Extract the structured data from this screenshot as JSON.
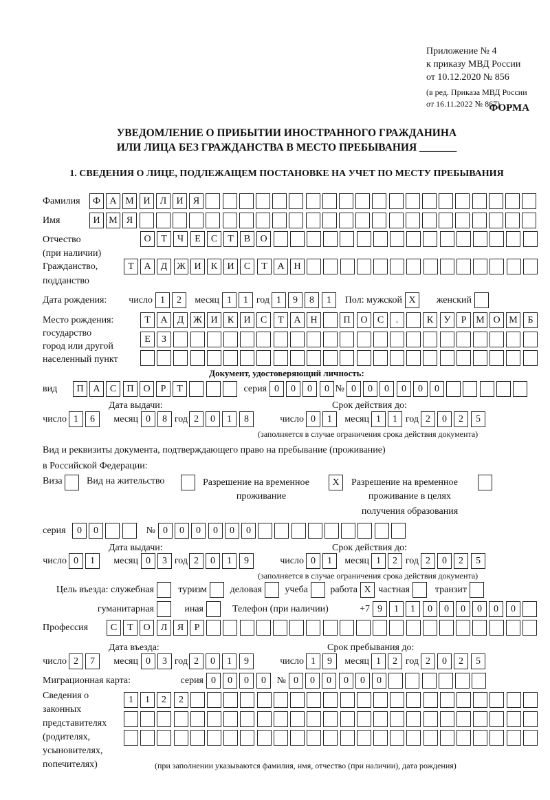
{
  "header": {
    "line1": "Приложение № 4",
    "line2": "к приказу МВД России",
    "line3": "от 10.12.2020 № 856",
    "line4": "(в ред. Приказа МВД России",
    "line5": "от 16.11.2022 № 867)",
    "form_label": "ФОРМА",
    "title1": "УВЕДОМЛЕНИЕ О ПРИБЫТИИ ИНОСТРАННОГО ГРАЖДАНИНА",
    "title2": "ИЛИ ЛИЦА БЕЗ ГРАЖДАНСТВА В МЕСТО ПРЕБЫВАНИЯ _______",
    "section1": "1. СВЕДЕНИЯ О ЛИЦЕ, ПОДЛЕЖАЩЕМ ПОСТАНОВКЕ НА УЧЕТ ПО МЕСТУ ПРЕБЫВАНИЯ"
  },
  "labels": {
    "surname": "Фамилия",
    "name": "Имя",
    "patronymic": "Отчество",
    "patronymic2": "(при наличии)",
    "citizenship": "Гражданство,",
    "citizenship2": "подданство",
    "birth_date": "Дата рождения:",
    "day": "число",
    "month": "месяц",
    "year": "год",
    "sex": "Пол: мужской",
    "female": "женский",
    "birth_place": "Место рождения:",
    "birth_place2": "государство",
    "birth_place3": "город или другой",
    "birth_place4": "населенный пункт",
    "id_doc": "Документ, удостоверяющий личность:",
    "kind": "вид",
    "series": "серия",
    "number": "№",
    "issue_date": "Дата выдачи:",
    "valid_until": "Срок действия до:",
    "valid_note": "(заполняется в случае ограничения срока действия документа)",
    "permit_doc": "Вид и реквизиты документа, подтверждающего право на пребывание (проживание)",
    "permit_doc2": "в Российской Федерации:",
    "visa": "Виза",
    "residence": "Вид на жительство",
    "temp": "Разрешение на временное",
    "temp2": "проживание",
    "temp_edu": "Разрешение на временное",
    "temp_edu2": "проживание в целях",
    "temp_edu3": "получения образования",
    "purpose": "Цель въезда: служебная",
    "tourism": "туризм",
    "business": "деловая",
    "study": "учеба",
    "work": "работа",
    "private": "частная",
    "transit": "транзит",
    "humanitarian": "гуманитарная",
    "other": "иная",
    "phone": "Телефон (при наличии)",
    "phone_prefix": "+7",
    "profession": "Профессия",
    "entry_date": "Дата въезда:",
    "stay_until": "Срок пребывания до:",
    "migration_card": "Миграционная карта:",
    "reps1": "Сведения о",
    "reps2": "законных",
    "reps3": "представителях",
    "reps4": "(родителях,",
    "reps5": "усыновителях,",
    "reps6": "попечителях)",
    "reps_note": "(при заполнении указываются фамилия, имя, отчество (при наличии), дата рождения)"
  },
  "values": {
    "surname": "ФАМИЛИЯ",
    "name": "ИМЯ",
    "patronymic": "ОТЧЕСТВО",
    "citizenship": "ТАДЖИКИСТАН",
    "birth_day": "12",
    "birth_month": "11",
    "birth_year": "1981",
    "sex_male": "X",
    "sex_female": "",
    "birth_place1": "ТАДЖИКИСТАН ПОС. КУРМОМБ",
    "birth_place2": "ЕЗ",
    "birth_place3": "",
    "doc_kind": "ПАСПОРТ",
    "doc_series": "0000",
    "doc_number": "000000",
    "doc_issue_day": "16",
    "doc_issue_month": "08",
    "doc_issue_year": "2018",
    "doc_valid_day": "01",
    "doc_valid_month": "11",
    "doc_valid_year": "2025",
    "visa": "",
    "residence": "",
    "temp": "X",
    "temp_edu": "",
    "permit_series": "00",
    "permit_number": "000000",
    "permit_issue_day": "01",
    "permit_issue_month": "03",
    "permit_issue_year": "2019",
    "permit_valid_day": "01",
    "permit_valid_month": "12",
    "permit_valid_year": "2025",
    "p_service": "",
    "p_tourism": "",
    "p_business": "",
    "p_study": "",
    "p_work": "X",
    "p_private": "",
    "p_transit": "",
    "p_humanitarian": "",
    "p_other": "",
    "phone": "911000000",
    "profession": "СТОЛЯР",
    "entry_day": "27",
    "entry_month": "03",
    "entry_year": "2019",
    "stay_day": "19",
    "stay_month": "12",
    "stay_year": "2025",
    "mc_series": "0000",
    "mc_number": "000000",
    "reps1": "1122",
    "reps2": "",
    "reps3": ""
  }
}
